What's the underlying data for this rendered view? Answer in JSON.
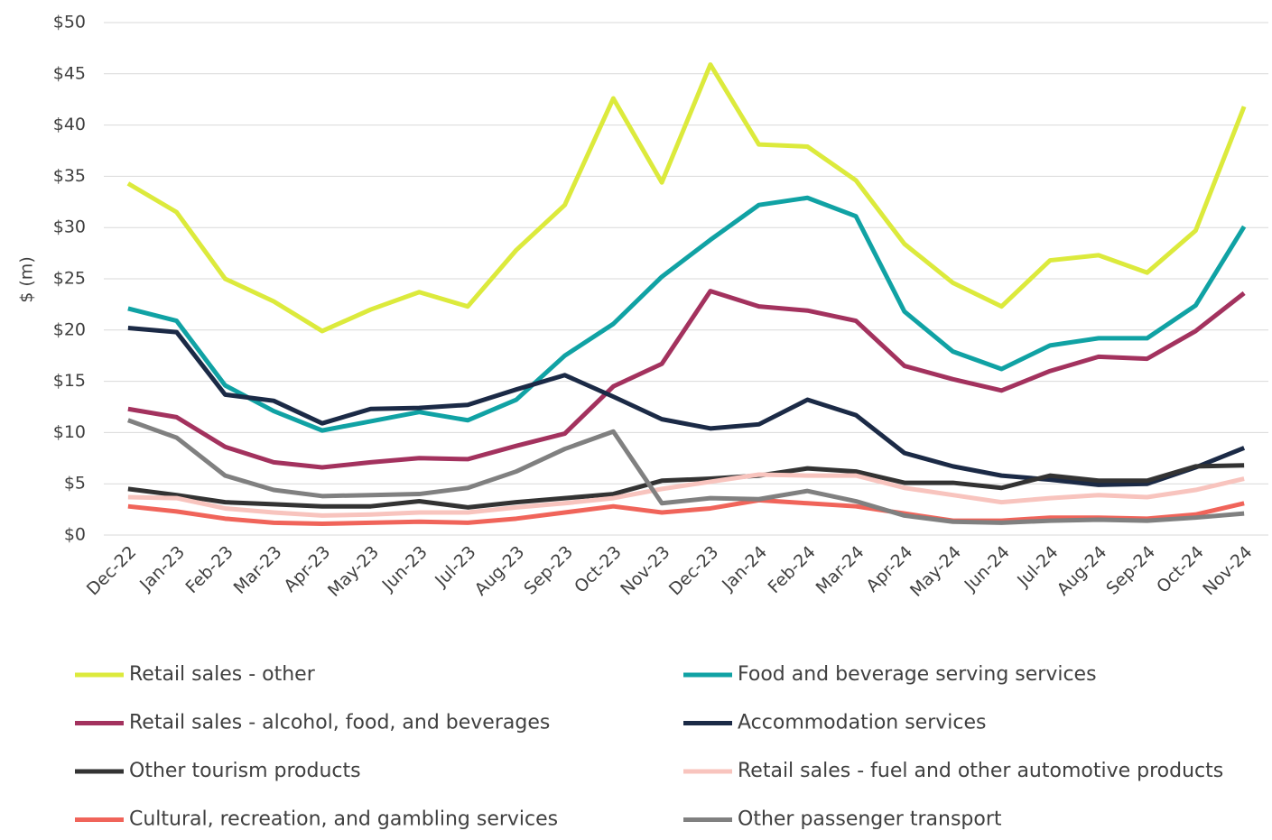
{
  "chart_data": {
    "type": "line",
    "y_label": "$ (m)",
    "categories": [
      "Dec-22",
      "Jan-23",
      "Feb-23",
      "Mar-23",
      "Apr-23",
      "May-23",
      "Jun-23",
      "Jul-23",
      "Aug-23",
      "Sep-23",
      "Oct-23",
      "Nov-23",
      "Dec-23",
      "Jan-24",
      "Feb-24",
      "Mar-24",
      "Apr-24",
      "May-24",
      "Jun-24",
      "Jul-24",
      "Aug-24",
      "Sep-24",
      "Oct-24",
      "Nov-24"
    ],
    "ylim": [
      0,
      50
    ],
    "yticks": [
      {
        "value": 0,
        "label": "$0"
      },
      {
        "value": 5,
        "label": "$5"
      },
      {
        "value": 10,
        "label": "$10"
      },
      {
        "value": 15,
        "label": "$15"
      },
      {
        "value": 20,
        "label": "$20"
      },
      {
        "value": 25,
        "label": "$25"
      },
      {
        "value": 30,
        "label": "$30"
      },
      {
        "value": 35,
        "label": "$35"
      },
      {
        "value": 40,
        "label": "$40"
      },
      {
        "value": 45,
        "label": "$45"
      },
      {
        "value": 50,
        "label": "$50"
      }
    ],
    "grid": true,
    "series": [
      {
        "name": "Retail sales - other",
        "color": "#dcea3c",
        "values": [
          34.3,
          31.5,
          25,
          22.8,
          19.9,
          22,
          23.7,
          22.3,
          27.8,
          32.2,
          42.6,
          34.4,
          45.9,
          38.1,
          37.9,
          34.6,
          28.4,
          24.6,
          22.3,
          26.8,
          27.3,
          25.6,
          29.7,
          41.8
        ]
      },
      {
        "name": "Food and beverage serving services",
        "color": "#10a2a4",
        "values": [
          22.1,
          20.9,
          14.6,
          12.1,
          10.2,
          11.1,
          12,
          11.2,
          13.2,
          17.5,
          20.6,
          25.2,
          28.8,
          32.2,
          32.9,
          31.1,
          21.8,
          17.9,
          16.2,
          18.5,
          19.2,
          19.2,
          22.4,
          30.1
        ]
      },
      {
        "name": "Retail sales - alcohol, food, and beverages",
        "color": "#a3325e",
        "values": [
          12.3,
          11.5,
          8.6,
          7.1,
          6.6,
          7.1,
          7.5,
          7.4,
          8.7,
          9.9,
          14.5,
          16.7,
          23.8,
          22.3,
          21.9,
          20.9,
          16.5,
          15.2,
          14.1,
          16,
          17.4,
          17.2,
          19.9,
          23.6
        ]
      },
      {
        "name": "Accommodation services",
        "color": "#1b2a46",
        "values": [
          20.2,
          19.8,
          13.7,
          13.1,
          10.9,
          12.3,
          12.4,
          12.7,
          14.2,
          15.6,
          13.5,
          11.3,
          10.4,
          10.8,
          13.2,
          11.7,
          8,
          6.7,
          5.8,
          5.4,
          4.9,
          5,
          6.6,
          8.5
        ]
      },
      {
        "name": "Other tourism products",
        "color": "#333333",
        "values": [
          4.5,
          3.9,
          3.2,
          3,
          2.8,
          2.8,
          3.3,
          2.7,
          3.2,
          3.6,
          4,
          5.3,
          5.5,
          5.8,
          6.5,
          6.2,
          5.1,
          5.1,
          4.6,
          5.8,
          5.3,
          5.3,
          6.7,
          6.8
        ]
      },
      {
        "name": "Retail sales - fuel and other automotive products",
        "color": "#f8c4be",
        "values": [
          3.7,
          3.6,
          2.6,
          2.2,
          1.9,
          2,
          2.2,
          2.2,
          2.7,
          3.1,
          3.6,
          4.5,
          5.2,
          5.9,
          5.8,
          5.8,
          4.6,
          3.9,
          3.2,
          3.6,
          3.9,
          3.7,
          4.4,
          5.5
        ]
      },
      {
        "name": "Cultural, recreation, and gambling services",
        "color": "#f0645a",
        "values": [
          2.8,
          2.3,
          1.6,
          1.2,
          1.1,
          1.2,
          1.3,
          1.2,
          1.6,
          2.2,
          2.8,
          2.2,
          2.6,
          3.4,
          3.1,
          2.8,
          2.1,
          1.4,
          1.4,
          1.7,
          1.7,
          1.6,
          2,
          3.1
        ]
      },
      {
        "name": "Other passenger transport",
        "color": "#808080",
        "values": [
          11.2,
          9.5,
          5.8,
          4.4,
          3.8,
          3.9,
          4,
          4.6,
          6.2,
          8.4,
          10.1,
          3.1,
          3.6,
          3.5,
          4.3,
          3.3,
          1.9,
          1.3,
          1.2,
          1.4,
          1.5,
          1.4,
          1.7,
          2.1
        ]
      }
    ]
  }
}
